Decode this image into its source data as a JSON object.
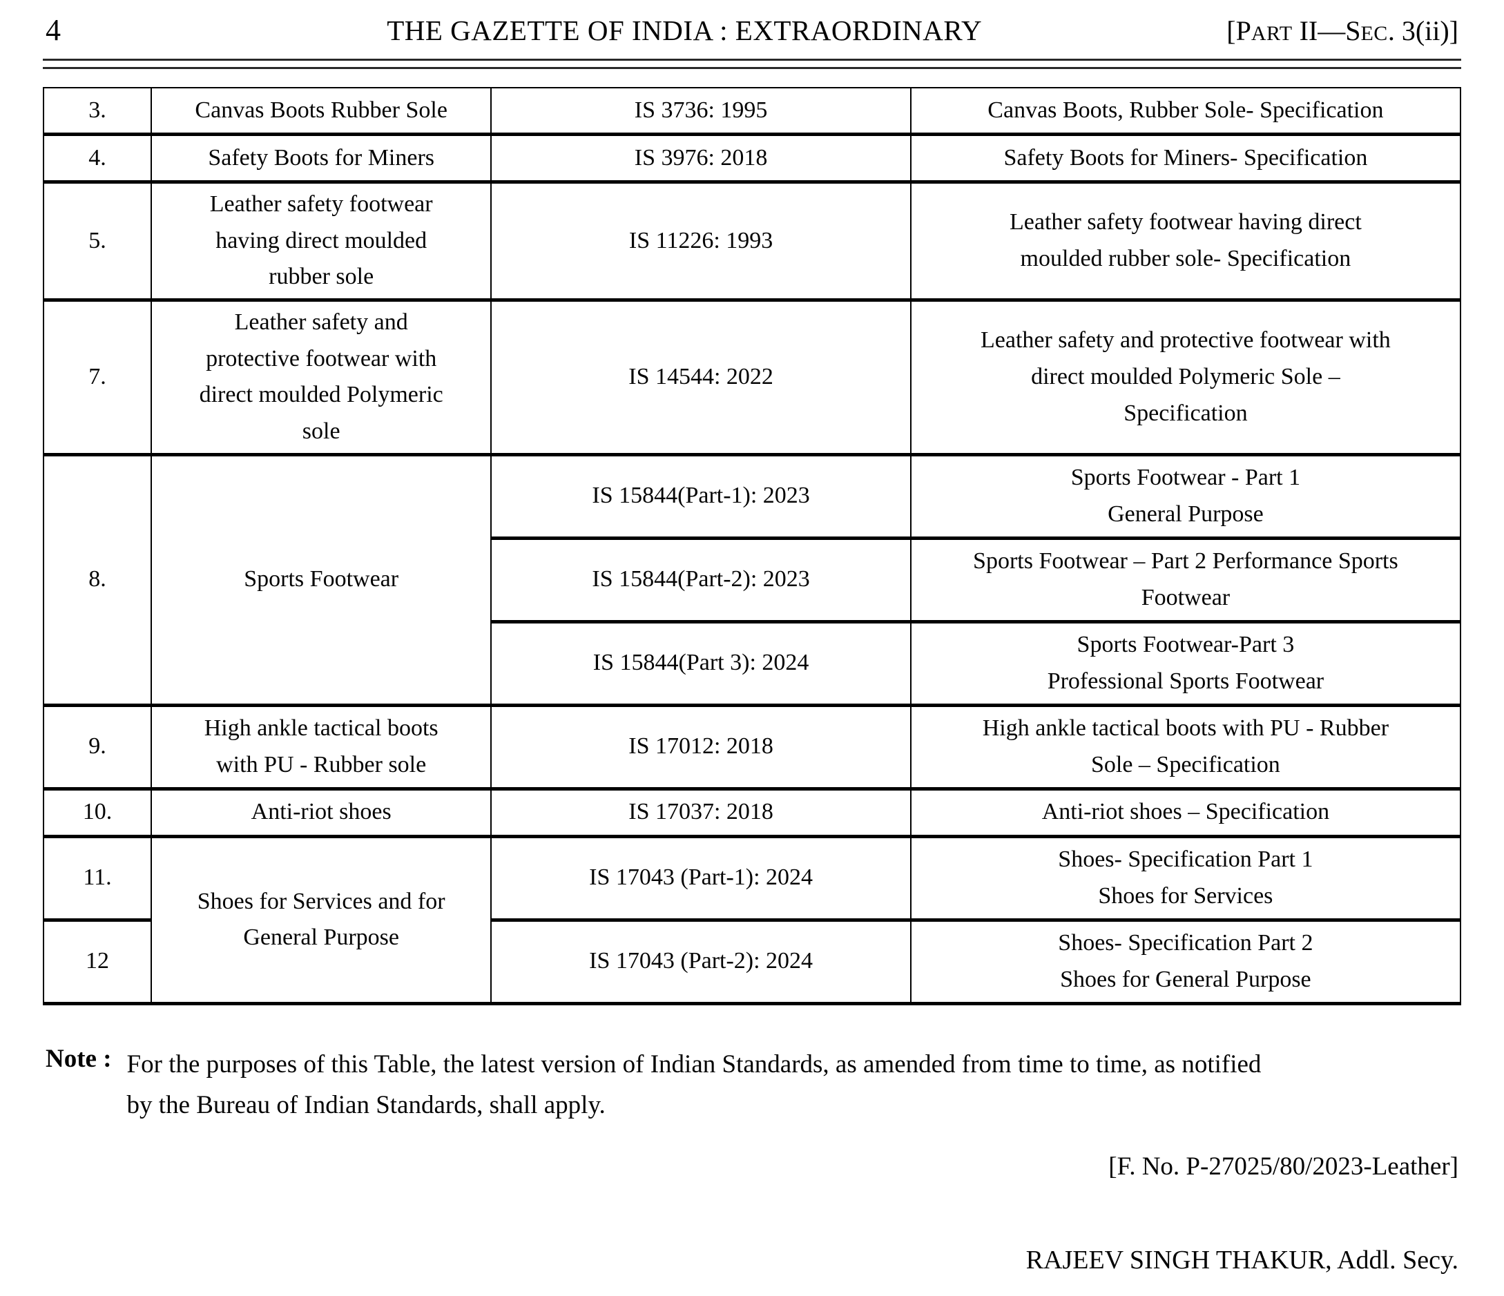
{
  "colors": {
    "ink": "#050505",
    "rule": "#2a2a2a",
    "background": "#ffffff"
  },
  "header": {
    "page_number": "4",
    "title": "THE GAZETTE OF INDIA : EXTRAORDINARY",
    "section": {
      "seg1": "[P",
      "seg2": "ART",
      "seg3": " II—S",
      "seg4": "EC",
      "seg5": ". 3(ii)]"
    }
  },
  "table": {
    "rows": [
      {
        "sn": "3.",
        "name": "Canvas Boots Rubber Sole",
        "std": "IS 3736: 1995",
        "title": "Canvas Boots, Rubber Sole- Specification"
      },
      {
        "sn": "4.",
        "name": "Safety Boots for Miners",
        "std": "IS 3976: 2018",
        "title": "Safety Boots for Miners- Specification"
      },
      {
        "sn": "5.",
        "name": "Leather safety footwear\nhaving direct moulded\nrubber sole",
        "std": "IS 11226: 1993",
        "title": "Leather safety footwear having direct\nmoulded rubber sole- Specification"
      },
      {
        "sn": "7.",
        "name": "Leather safety and\nprotective footwear with\ndirect moulded Polymeric\nsole",
        "std": "IS 14544: 2022",
        "title": "Leather safety and protective footwear with\ndirect moulded Polymeric Sole –\nSpecification"
      },
      {
        "sn": "8.",
        "name": "Sports Footwear",
        "std": "IS 15844(Part-1): 2023",
        "title": "Sports Footwear - Part 1\nGeneral Purpose"
      },
      {
        "std": "IS 15844(Part-2): 2023",
        "title": "Sports Footwear – Part 2 Performance Sports\nFootwear"
      },
      {
        "std": "IS 15844(Part 3): 2024",
        "title": "Sports Footwear-Part 3\nProfessional Sports Footwear"
      },
      {
        "sn": "9.",
        "name": "High ankle tactical boots\nwith PU - Rubber sole",
        "std": "IS 17012: 2018",
        "title": "High ankle tactical boots with PU - Rubber\nSole – Specification"
      },
      {
        "sn": "10.",
        "name": "Anti-riot shoes",
        "std": "IS 17037: 2018",
        "title": "Anti-riot shoes – Specification"
      },
      {
        "sn": "11.",
        "name": "Shoes for Services and for\nGeneral Purpose",
        "std": "IS 17043 (Part-1): 2024",
        "title": "Shoes- Specification Part 1\nShoes for Services"
      },
      {
        "sn": "12",
        "std": "IS 17043 (Part-2): 2024",
        "title": "Shoes- Specification Part 2\nShoes for General Purpose"
      }
    ]
  },
  "note": {
    "label": "Note :",
    "text": "For the purposes of this Table, the latest version of Indian Standards, as amended from time to time, as notified\nby the Bureau of Indian Standards, shall apply."
  },
  "file_number": "[F. No. P-27025/80/2023-Leather]",
  "signature": "RAJEEV SINGH THAKUR, Addl. Secy."
}
